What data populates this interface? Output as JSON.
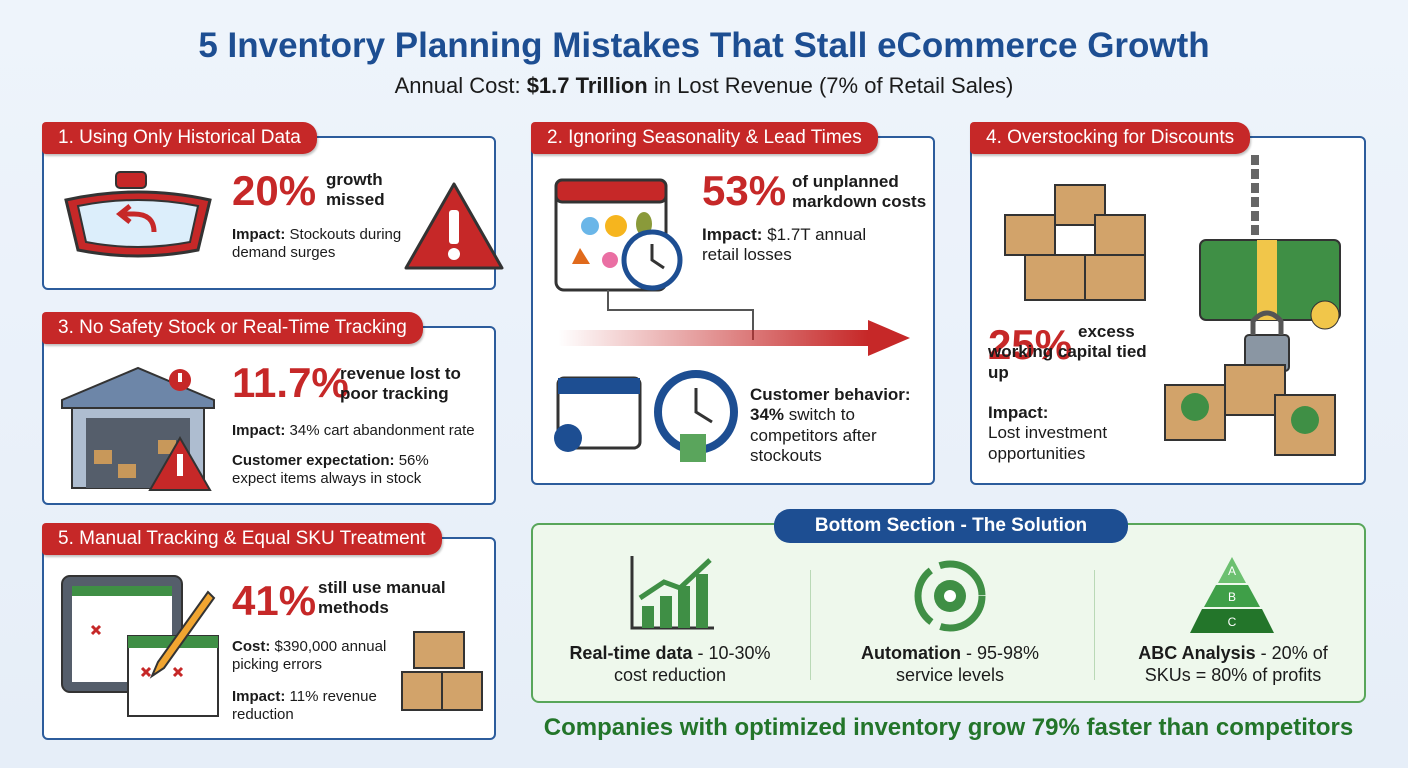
{
  "title": "5 Inventory Planning Mistakes That Stall eCommerce Growth",
  "subtitle": {
    "before": "Annual Cost:",
    "highlight": "$1.7 Trillion",
    "after": "in Lost Revenue (7% of Retail Sales)"
  },
  "cards": [
    {
      "heading": "1. Using Only Historical Data",
      "stat": "20%",
      "stat_label": "growth missed",
      "notes": [
        {
          "label": "Impact:",
          "text": "Stockouts during demand surges"
        }
      ]
    },
    {
      "heading": "2. Ignoring Seasonality & Lead Times",
      "stat": "53%",
      "stat_label": "of unplanned markdown costs",
      "notes": [
        {
          "label": "Impact:",
          "text": "$1.7T annual retail losses"
        },
        {
          "label": "Customer behavior:",
          "emphasis": "34%",
          "text": "switch to competitors after stockouts"
        }
      ]
    },
    {
      "heading": "3. No Safety Stock or Real-Time Tracking",
      "stat": "11.7%",
      "stat_label": "revenue lost to poor tracking",
      "notes": [
        {
          "label": "Impact:",
          "text": "34% cart abandonment rate"
        },
        {
          "label": "Customer expectation:",
          "text": "56% expect items always in stock"
        }
      ]
    },
    {
      "heading": "4. Overstocking for Discounts",
      "stat": "25%",
      "stat_label": "excess working capital tied up",
      "notes": [
        {
          "label": "Impact:",
          "text": "Lost investment opportunities"
        }
      ]
    },
    {
      "heading": "5. Manual Tracking & Equal SKU Treatment",
      "stat": "41%",
      "stat_label": "still use manual methods",
      "notes": [
        {
          "label": "Cost:",
          "text": "$390,000 annual picking errors"
        },
        {
          "label": "Impact:",
          "text": "11% revenue reduction"
        }
      ]
    }
  ],
  "solution": {
    "title": "Bottom Section - The Solution",
    "items": [
      {
        "label": "Real-time data",
        "text": "- 10-30% cost reduction"
      },
      {
        "label": "Automation",
        "text": "- 95-98% service levels"
      },
      {
        "label": "ABC Analysis",
        "text": "- 20% of SKUs = 80% of profits"
      }
    ],
    "pyramid_levels": [
      "A",
      "B",
      "C"
    ]
  },
  "footer": "Companies with optimized inventory grow 79% faster than competitors"
}
